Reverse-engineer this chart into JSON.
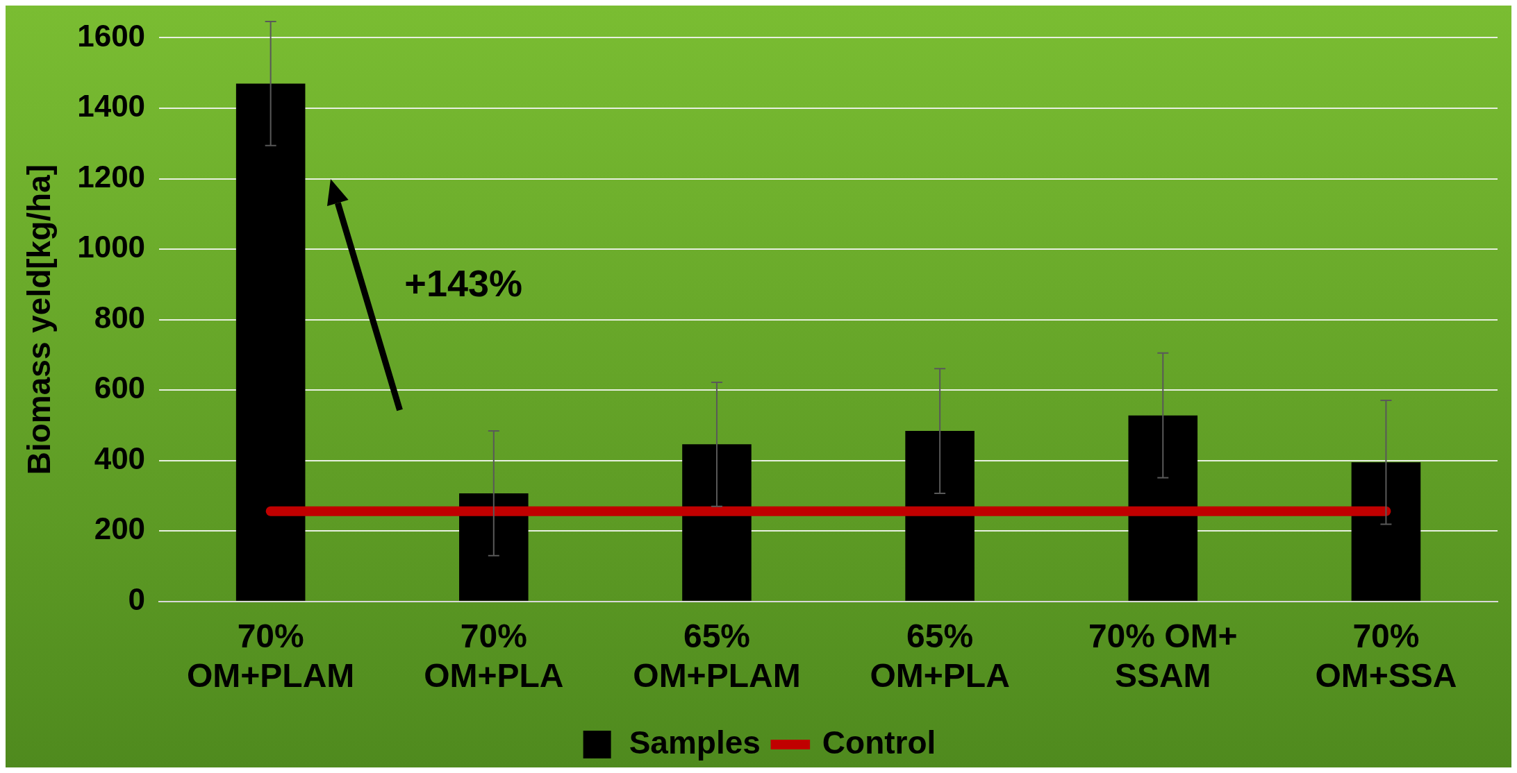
{
  "chart_data": {
    "type": "bar",
    "ylabel": "Biomass yeld[kg/ha]",
    "categories": [
      "70%\nOM+PLAM",
      "70%\nOM+PLA",
      "65%\nOM+PLAM",
      "65%\nOM+PLA",
      "70% OM+\nSSAM",
      "70%\nOM+SSA"
    ],
    "series": [
      {
        "name": "Samples",
        "color": "#000000",
        "values": [
          1470,
          307,
          446,
          484,
          528,
          395
        ],
        "errors": [
          176,
          177,
          176,
          177,
          177,
          176
        ]
      },
      {
        "name": "Control",
        "type": "line",
        "color": "#c00000",
        "values": [
          256,
          256,
          256,
          256,
          256,
          256
        ]
      }
    ],
    "ylim": [
      0,
      1600
    ],
    "yticks": [
      0,
      200,
      400,
      600,
      800,
      1000,
      1200,
      1400,
      1600
    ],
    "grid": "y",
    "legend": "bottom",
    "marker": "none",
    "annotations": [
      "+143%"
    ]
  }
}
